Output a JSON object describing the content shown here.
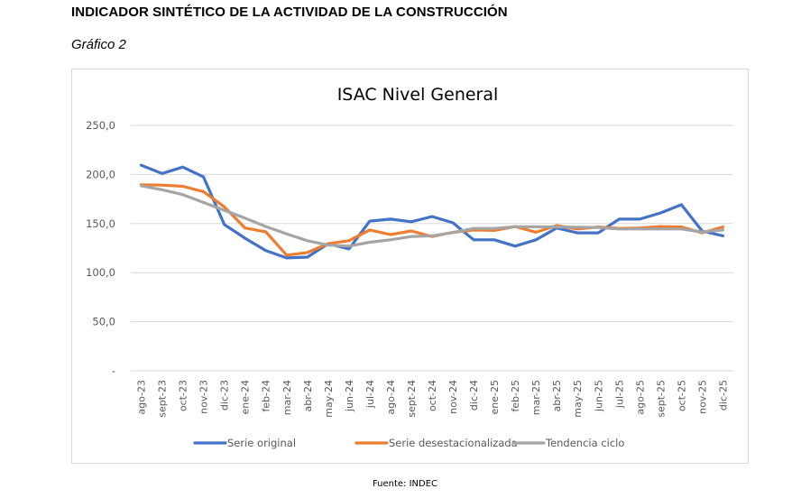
{
  "document": {
    "heading": "INDICADOR SINTÉTICO DE LA ACTIVIDAD DE LA CONSTRUCCIÓN",
    "subheading": "Gráfico 2",
    "source": "Fuente: INDEC"
  },
  "chart_data": {
    "type": "line",
    "title": "ISAC Nivel General",
    "xlabel": "",
    "ylabel": "",
    "ylim": [
      0,
      250
    ],
    "yticks": [
      0,
      50,
      100,
      150,
      200,
      250
    ],
    "ytick_labels": [
      "-",
      "50,0",
      "100,0",
      "150,0",
      "200,0",
      "250,0"
    ],
    "grid": true,
    "legend_position": "bottom",
    "categories": [
      "ago-23",
      "sept-23",
      "oct-23",
      "nov-23",
      "dic-23",
      "ene-24",
      "feb-24",
      "mar-24",
      "abr-24",
      "may-24",
      "jun-24",
      "jul-24",
      "ago-24",
      "sept-24",
      "oct-24",
      "nov-24",
      "dic-24",
      "ene-25",
      "feb-25",
      "mar-25",
      "abr-25",
      "may-25",
      "jun-25",
      "jul-25",
      "ago-25",
      "sept-25",
      "oct-25",
      "nov-25",
      "dic-25"
    ],
    "series": [
      {
        "name": "Serie original",
        "color": "#4472c4",
        "values": [
          209.5,
          201.0,
          207.5,
          197.5,
          149.0,
          135.0,
          122.5,
          115.0,
          115.8,
          129.5,
          124.2,
          152.5,
          154.5,
          151.8,
          157.2,
          150.8,
          133.5,
          133.5,
          127.0,
          133.5,
          145.5,
          140.5,
          140.5,
          154.5,
          154.5,
          160.8,
          169.2,
          142.5,
          137.5
        ]
      },
      {
        "name": "Serie desestacionalizada",
        "color": "#ed7d31",
        "values": [
          189.5,
          189.2,
          188.0,
          182.5,
          167.0,
          145.5,
          141.5,
          117.8,
          120.5,
          129.5,
          132.5,
          143.5,
          138.8,
          142.5,
          136.8,
          141.0,
          143.5,
          143.0,
          147.0,
          141.2,
          148.0,
          144.5,
          146.5,
          145.0,
          145.5,
          147.0,
          146.5,
          140.5,
          146.5
        ]
      },
      {
        "name": "Tendencia ciclo",
        "color": "#a5a5a5",
        "values": [
          188.5,
          184.5,
          179.5,
          171.5,
          163.5,
          155.5,
          147.0,
          139.5,
          132.5,
          128.0,
          127.0,
          131.0,
          133.5,
          136.8,
          137.5,
          140.8,
          145.0,
          145.0,
          146.8,
          146.8,
          146.5,
          146.2,
          146.0,
          144.5,
          144.5,
          144.5,
          144.5,
          141.5,
          143.5
        ]
      }
    ]
  }
}
